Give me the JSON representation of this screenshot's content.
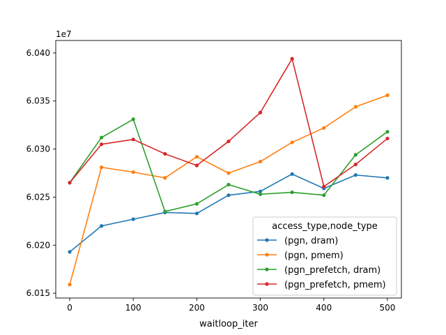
{
  "chart_data": {
    "type": "line",
    "xlabel": "waitloop_iter",
    "ylabel": "",
    "y_offset_label": "1e7",
    "y_scale": 10000000,
    "xlim": [
      -22,
      522
    ],
    "ylim": [
      6.0145,
      6.0413
    ],
    "x_ticks": [
      0,
      100,
      200,
      300,
      400,
      500
    ],
    "y_ticks": [
      6.015,
      6.02,
      6.025,
      6.03,
      6.035,
      6.04
    ],
    "y_tick_labels": [
      "6.015",
      "6.020",
      "6.025",
      "6.030",
      "6.035",
      "6.040"
    ],
    "legend_title": "access_type,node_type",
    "legend_position": "lower-right",
    "x": [
      0,
      50,
      100,
      150,
      200,
      250,
      300,
      350,
      400,
      450,
      500
    ],
    "series": [
      {
        "name": "(pgn, dram)",
        "color": "#1f77b4",
        "values": [
          6.0193,
          6.022,
          6.0227,
          6.0234,
          6.0233,
          6.0252,
          6.0256,
          6.0274,
          6.0259,
          6.0273,
          6.027
        ]
      },
      {
        "name": "(pgn, pmem)",
        "color": "#ff7f0e",
        "values": [
          6.0159,
          6.0281,
          6.0276,
          6.027,
          6.0292,
          6.0275,
          6.0287,
          6.0307,
          6.0322,
          6.0344,
          6.0356
        ]
      },
      {
        "name": "(pgn_prefetch, dram)",
        "color": "#2ca02c",
        "values": [
          6.0265,
          6.0312,
          6.0331,
          6.0235,
          6.0243,
          6.0263,
          6.0253,
          6.0255,
          6.0252,
          6.0294,
          6.0318
        ]
      },
      {
        "name": "(pgn_prefetch, pmem)",
        "color": "#d62728",
        "values": [
          6.0265,
          6.0305,
          6.031,
          6.0295,
          6.0283,
          6.0308,
          6.0338,
          6.0394,
          6.0261,
          6.0284,
          6.0311
        ]
      }
    ]
  }
}
